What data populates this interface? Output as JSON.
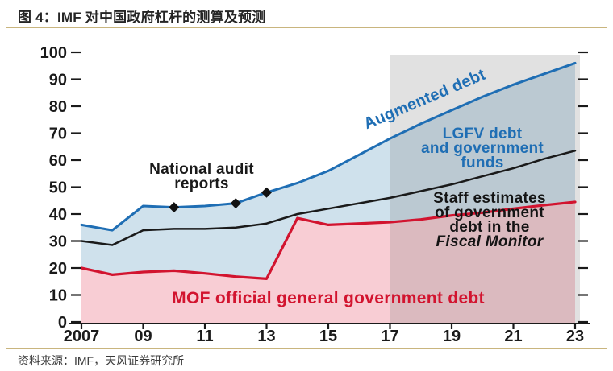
{
  "header": {
    "title": "图 4：IMF 对中国政府杠杆的测算及预测"
  },
  "footer": {
    "source": "资料来源：IMF，天风证券研究所"
  },
  "labels": {
    "audit": {
      "line1": "National audit",
      "line2": "reports"
    },
    "augmented": "Augmented debt",
    "lgfv": {
      "line1": "LGFV debt",
      "line2": "and government",
      "line3": "funds"
    },
    "staff": {
      "line1": "Staff estimates",
      "line2": "of government",
      "line3": "debt in the",
      "line4": "Fiscal Monitor"
    },
    "mof": "MOF official general government debt"
  },
  "colors": {
    "blue_line": "#1f6eb4",
    "blue_fill": "#cfe1ec",
    "red_line": "#d2142f",
    "pink_fill": "#f8cdd4",
    "black_line": "#1a1a1a",
    "band_gray": "#787878",
    "rule_tan": "#c9b57e"
  },
  "chart_data": {
    "type": "area",
    "title": "IMF 对中国政府杠杆的测算及预测",
    "xlabel": "",
    "ylabel": "",
    "ylim": [
      0,
      100
    ],
    "xlim": [
      2007,
      2023
    ],
    "grid": false,
    "x": [
      2007,
      2008,
      2009,
      2010,
      2011,
      2012,
      2013,
      2014,
      2015,
      2016,
      2017,
      2018,
      2019,
      2020,
      2021,
      2022,
      2023
    ],
    "x_ticks": [
      2007,
      2009,
      2011,
      2013,
      2015,
      2017,
      2019,
      2021,
      2023
    ],
    "x_ticklabels": [
      "2007",
      "09",
      "11",
      "13",
      "15",
      "17",
      "19",
      "21",
      "23"
    ],
    "y_ticks": [
      0,
      10,
      20,
      30,
      40,
      50,
      60,
      70,
      80,
      90,
      100
    ],
    "series": [
      {
        "id": "augmented-debt-line",
        "name": "Augmented debt",
        "color": "#1f6eb4",
        "fill": "#cfe1ec",
        "width": 3,
        "values": [
          36,
          34,
          43,
          42.5,
          43,
          44,
          48,
          51.5,
          56,
          62,
          68,
          73.5,
          78.5,
          83.5,
          88,
          92,
          96
        ]
      },
      {
        "id": "staff-estimates-line",
        "name": "Staff estimates of government debt in the Fiscal Monitor",
        "color": "#1a1a1a",
        "width": 2.5,
        "values": [
          30,
          28.5,
          34,
          34.5,
          34.5,
          35,
          36.5,
          40,
          42,
          44,
          46,
          48.5,
          51,
          54,
          57,
          60.5,
          63.5
        ]
      },
      {
        "id": "mof-debt-line",
        "name": "MOF official general government debt",
        "color": "#d2142f",
        "fill": "#f8cdd4",
        "width": 3.2,
        "values": [
          20,
          17.5,
          18.5,
          19,
          18,
          16.8,
          16,
          38.5,
          36,
          36.5,
          37,
          38,
          39.5,
          40.5,
          42,
          43.3,
          44.5
        ]
      }
    ],
    "audit_markers": {
      "label": "National audit reports",
      "points": [
        [
          2010,
          42.5
        ],
        [
          2012,
          44
        ],
        [
          2013,
          48
        ]
      ]
    },
    "forecast_band": {
      "from": 2017,
      "to": 2023,
      "color": "#787878",
      "opacity": 0.22
    }
  }
}
